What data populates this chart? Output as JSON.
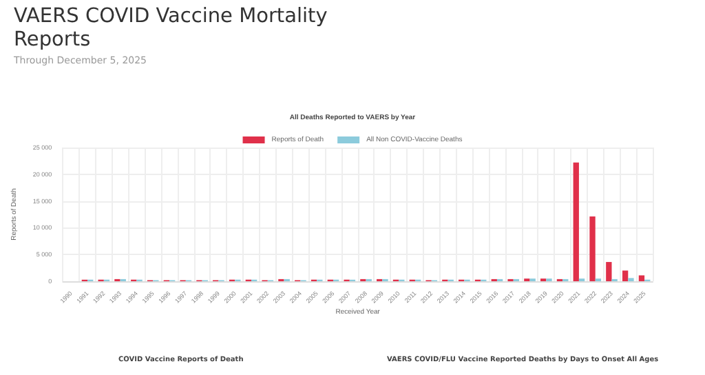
{
  "chart_data": {
    "type": "bar",
    "title": "All Deaths Reported to VAERS by Year",
    "subtitle": "VAERS COVID Vaccine Mortality Reports",
    "annotations": [
      "Through December 5, 2025",
      "COVID Vaccine Reports of Death",
      "VAERS COVID/FLU Vaccine Reported Deaths by Days to Onset All Ages"
    ],
    "xlabel": "Received Year",
    "ylabel": "Reports of Death",
    "categories": [
      "1990",
      "1991",
      "1992",
      "1993",
      "1994",
      "1995",
      "1996",
      "1997",
      "1998",
      "1999",
      "2000",
      "2001",
      "2002",
      "2003",
      "2004",
      "2005",
      "2006",
      "2007",
      "2008",
      "2009",
      "2010",
      "2011",
      "2012",
      "2013",
      "2014",
      "2015",
      "2016",
      "2017",
      "2018",
      "2019",
      "2020",
      "2021",
      "2022",
      "2023",
      "2024",
      "2025"
    ],
    "series": [
      {
        "name": "Reports of Death",
        "color": "#e0304a",
        "values": [
          null,
          300,
          300,
          400,
          300,
          200,
          200,
          200,
          200,
          200,
          300,
          300,
          200,
          400,
          200,
          300,
          300,
          300,
          400,
          400,
          300,
          300,
          200,
          300,
          300,
          300,
          400,
          400,
          500,
          500,
          400,
          22200,
          12100,
          3600,
          2000,
          1100
        ]
      },
      {
        "name": "All Non COVID-Vaccine Deaths",
        "color": "#8ccbdc",
        "values": [
          null,
          300,
          300,
          400,
          300,
          200,
          200,
          200,
          200,
          200,
          300,
          300,
          200,
          400,
          200,
          300,
          300,
          300,
          400,
          400,
          300,
          300,
          200,
          300,
          300,
          300,
          400,
          400,
          500,
          500,
          400,
          500,
          500,
          400,
          600,
          300
        ]
      }
    ],
    "ylim": [
      0,
      25000
    ],
    "yticks": [
      0,
      {
        "value": 5000,
        "label": "5 000"
      },
      {
        "value": 10000,
        "label": "10 000"
      },
      {
        "value": 15000,
        "label": "15 000"
      },
      {
        "value": 20000,
        "label": "20 000"
      },
      {
        "value": 25000,
        "label": "25 000"
      }
    ],
    "grid": true,
    "legend": "top"
  }
}
